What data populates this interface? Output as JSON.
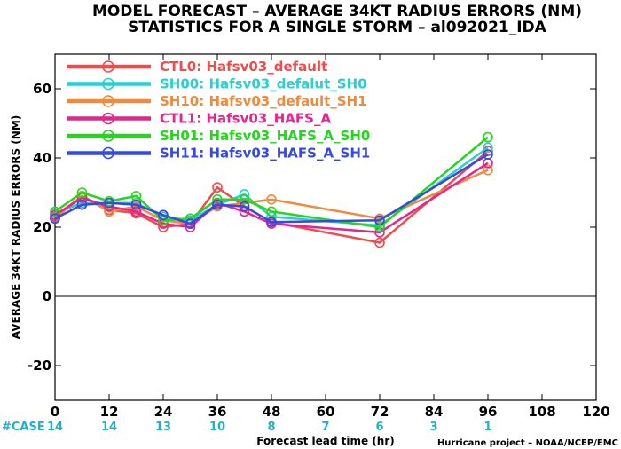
{
  "chart_data": {
    "type": "line",
    "title": "MODEL FORECAST – AVERAGE 34KT RADIUS ERRORS (NM)",
    "subtitle": "STATISTICS FOR A SINGLE STORM – al092021_IDA",
    "xlabel": "Forecast lead time (hr)",
    "ylabel": "AVERAGE 34KT RADIUS ERRORS (NM)",
    "xlim": [
      0,
      120
    ],
    "ylim": [
      -30,
      70
    ],
    "xticks": [
      0,
      12,
      24,
      36,
      48,
      60,
      72,
      84,
      96,
      108,
      120
    ],
    "yticks": [
      -20,
      0,
      20,
      40,
      60
    ],
    "legend_position": "top-left",
    "case_label": "#CASE",
    "case_x": [
      0,
      12,
      24,
      36,
      48,
      60,
      72,
      84,
      96
    ],
    "cases": [
      "14",
      "14",
      "13",
      "10",
      "8",
      "7",
      "6",
      "3",
      "1"
    ],
    "credit": "Hurricane project – NOAA/NCEP/EMC",
    "x": [
      0,
      6,
      12,
      18,
      24,
      30,
      36,
      42,
      48,
      72,
      96
    ],
    "series": [
      {
        "name": "CTL0: Hafsv03_default",
        "color": "#f24b4b",
        "values": [
          23,
          29,
          25,
          24,
          20,
          21,
          31.5,
          26,
          21.5,
          15.5,
          42
        ]
      },
      {
        "name": "SH00: Hafsv03_defalut_SH0",
        "color": "#2ccfcf",
        "values": [
          24,
          27,
          27,
          27,
          23,
          22,
          26.5,
          29.5,
          23,
          20.5,
          43
        ]
      },
      {
        "name": "SH10: Hafsv03_default_SH1",
        "color": "#f08a3c",
        "values": [
          22.5,
          29,
          24.5,
          26,
          22,
          21,
          26,
          27,
          28,
          22.5,
          36.5
        ]
      },
      {
        "name": "CTL1: Hafsv03_HAFS_A",
        "color": "#e8238e",
        "values": [
          23.5,
          28.5,
          26,
          24.5,
          21,
          20,
          27,
          24.5,
          21,
          18.5,
          38.5
        ]
      },
      {
        "name": "SH01: Hafsv03_HAFS_A_SH0",
        "color": "#22d81a",
        "values": [
          24.5,
          30,
          27.5,
          29,
          22,
          22.5,
          28,
          28,
          24.5,
          20,
          46
        ]
      },
      {
        "name": "SH11: Hafsv03_HAFS_A_SH1",
        "color": "#3549e8",
        "values": [
          22.5,
          26.5,
          27,
          26.5,
          23.5,
          21,
          26.5,
          26,
          21.5,
          22,
          41
        ]
      }
    ]
  }
}
